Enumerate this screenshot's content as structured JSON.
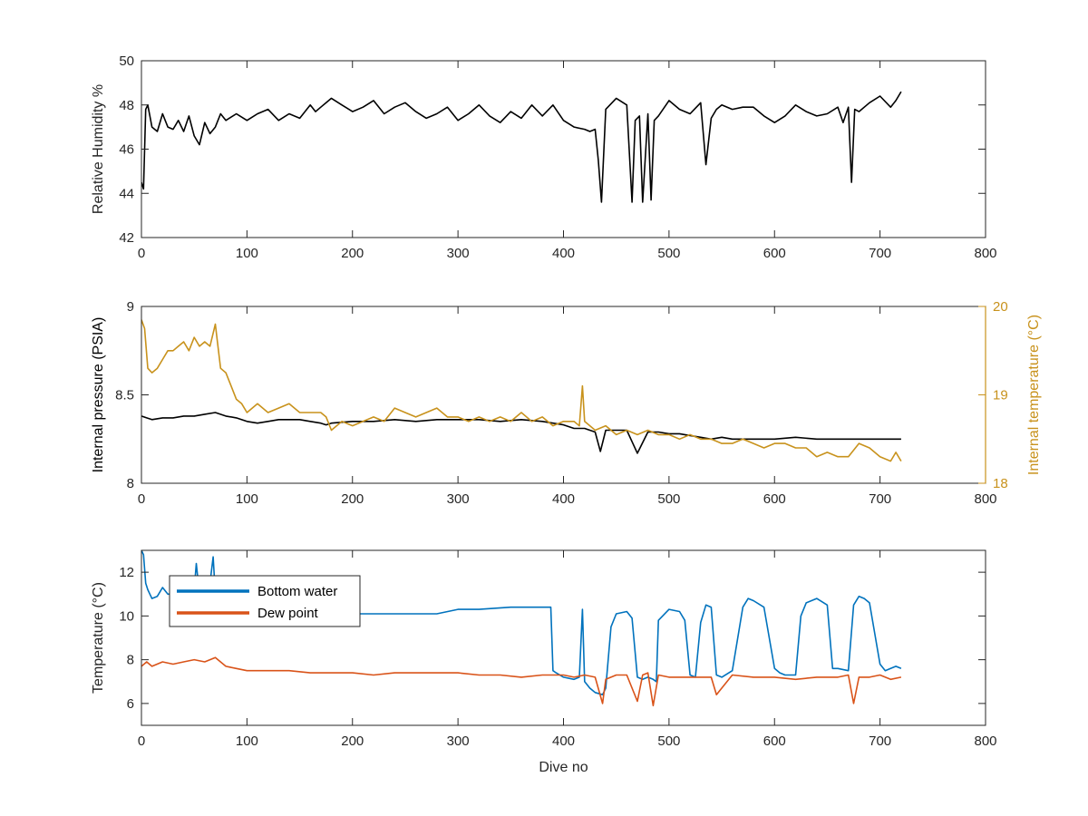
{
  "chart_data": [
    {
      "type": "line",
      "xlabel": "",
      "ylabel": "Relative Humidity %",
      "xlim": [
        0,
        800
      ],
      "ylim": [
        42,
        50
      ],
      "xticks": [
        "0",
        "100",
        "200",
        "300",
        "400",
        "500",
        "600",
        "700",
        "800"
      ],
      "yticks": [
        "42",
        "44",
        "46",
        "48",
        "50"
      ],
      "grid": false,
      "colors": {
        "line": "#000000"
      },
      "series": [
        {
          "x": [
            0,
            2,
            4,
            6,
            8,
            10,
            15,
            20,
            25,
            30,
            35,
            40,
            45,
            50,
            55,
            60,
            65,
            70,
            75,
            80,
            90,
            100,
            110,
            120,
            130,
            140,
            150,
            160,
            165,
            170,
            175,
            180,
            190,
            200,
            210,
            220,
            230,
            240,
            250,
            260,
            270,
            280,
            290,
            300,
            310,
            320,
            330,
            340,
            350,
            360,
            370,
            380,
            390,
            400,
            410,
            420,
            425,
            430,
            433,
            436,
            440,
            450,
            460,
            465,
            468,
            472,
            475,
            480,
            483,
            486,
            490,
            500,
            510,
            520,
            530,
            535,
            540,
            545,
            550,
            560,
            570,
            580,
            590,
            600,
            610,
            620,
            630,
            640,
            650,
            660,
            665,
            670,
            673,
            676,
            680,
            690,
            700,
            710,
            715,
            720
          ],
          "values": [
            44.5,
            44.2,
            47.8,
            48.0,
            47.5,
            47.0,
            46.8,
            47.6,
            47.0,
            46.9,
            47.3,
            46.8,
            47.5,
            46.6,
            46.2,
            47.2,
            46.7,
            47.0,
            47.6,
            47.3,
            47.6,
            47.3,
            47.6,
            47.8,
            47.3,
            47.6,
            47.4,
            48.0,
            47.7,
            47.9,
            48.1,
            48.3,
            48.0,
            47.7,
            47.9,
            48.2,
            47.6,
            47.9,
            48.1,
            47.7,
            47.4,
            47.6,
            47.9,
            47.3,
            47.6,
            48.0,
            47.5,
            47.2,
            47.7,
            47.4,
            48.0,
            47.5,
            48.0,
            47.3,
            47.0,
            46.9,
            46.8,
            46.9,
            45.5,
            43.6,
            47.8,
            48.3,
            48.0,
            43.6,
            47.3,
            47.5,
            43.6,
            47.6,
            43.7,
            47.3,
            47.5,
            48.2,
            47.8,
            47.6,
            48.1,
            45.3,
            47.4,
            47.8,
            48.0,
            47.8,
            47.9,
            47.9,
            47.5,
            47.2,
            47.5,
            48.0,
            47.7,
            47.5,
            47.6,
            47.9,
            47.2,
            47.9,
            44.5,
            47.8,
            47.7,
            48.1,
            48.4,
            47.9,
            48.2,
            48.6
          ]
        }
      ]
    },
    {
      "type": "line",
      "xlabel": "",
      "ylabel": "Internal pressure (PSIA)",
      "ylabel_right": "Internal temperature (°C)",
      "xlim": [
        0,
        800
      ],
      "ylim": [
        8,
        9
      ],
      "ylim_right": [
        18,
        20
      ],
      "xticks": [
        "0",
        "100",
        "200",
        "300",
        "400",
        "500",
        "600",
        "700",
        "800"
      ],
      "yticks": [
        "8",
        "8.5",
        "9"
      ],
      "yticks_right": [
        "18",
        "19",
        "20"
      ],
      "grid": false,
      "colors": {
        "pressure": "#000000",
        "temperature": "#c8921c"
      },
      "series": [
        {
          "axis": "left",
          "x": [
            0,
            5,
            10,
            20,
            30,
            40,
            50,
            60,
            70,
            80,
            90,
            100,
            110,
            120,
            130,
            140,
            150,
            160,
            170,
            175,
            180,
            200,
            220,
            240,
            260,
            280,
            300,
            320,
            340,
            360,
            380,
            400,
            410,
            420,
            430,
            435,
            440,
            450,
            460,
            470,
            480,
            490,
            500,
            510,
            520,
            530,
            540,
            550,
            560,
            580,
            600,
            620,
            640,
            660,
            680,
            700,
            710,
            720
          ],
          "values": [
            8.38,
            8.37,
            8.36,
            8.37,
            8.37,
            8.38,
            8.38,
            8.39,
            8.4,
            8.38,
            8.37,
            8.35,
            8.34,
            8.35,
            8.36,
            8.36,
            8.36,
            8.35,
            8.34,
            8.33,
            8.34,
            8.35,
            8.35,
            8.36,
            8.35,
            8.36,
            8.36,
            8.36,
            8.35,
            8.36,
            8.35,
            8.33,
            8.31,
            8.31,
            8.29,
            8.18,
            8.3,
            8.3,
            8.3,
            8.17,
            8.29,
            8.29,
            8.28,
            8.28,
            8.27,
            8.26,
            8.25,
            8.26,
            8.25,
            8.25,
            8.25,
            8.26,
            8.25,
            8.25,
            8.25,
            8.25,
            8.25,
            8.25
          ]
        },
        {
          "axis": "right",
          "x": [
            0,
            3,
            6,
            10,
            15,
            20,
            25,
            30,
            35,
            40,
            45,
            50,
            55,
            60,
            65,
            70,
            72,
            75,
            80,
            85,
            90,
            95,
            100,
            110,
            120,
            130,
            140,
            150,
            160,
            170,
            175,
            180,
            190,
            200,
            210,
            220,
            230,
            240,
            250,
            260,
            270,
            280,
            290,
            300,
            310,
            320,
            330,
            340,
            350,
            360,
            370,
            380,
            390,
            400,
            410,
            415,
            418,
            420,
            425,
            430,
            440,
            450,
            460,
            470,
            480,
            490,
            500,
            510,
            520,
            530,
            540,
            550,
            560,
            570,
            580,
            590,
            600,
            610,
            620,
            630,
            640,
            650,
            660,
            670,
            680,
            690,
            700,
            710,
            715,
            720
          ],
          "values": [
            19.85,
            19.75,
            19.3,
            19.25,
            19.3,
            19.4,
            19.5,
            19.5,
            19.55,
            19.6,
            19.5,
            19.65,
            19.55,
            19.6,
            19.55,
            19.8,
            19.6,
            19.3,
            19.25,
            19.1,
            18.95,
            18.9,
            18.8,
            18.9,
            18.8,
            18.85,
            18.9,
            18.8,
            18.8,
            18.8,
            18.75,
            18.6,
            18.7,
            18.65,
            18.7,
            18.75,
            18.7,
            18.85,
            18.8,
            18.75,
            18.8,
            18.85,
            18.75,
            18.75,
            18.7,
            18.75,
            18.7,
            18.75,
            18.7,
            18.8,
            18.7,
            18.75,
            18.65,
            18.7,
            18.7,
            18.65,
            19.1,
            18.7,
            18.65,
            18.6,
            18.65,
            18.55,
            18.6,
            18.55,
            18.6,
            18.55,
            18.55,
            18.5,
            18.55,
            18.5,
            18.5,
            18.45,
            18.45,
            18.5,
            18.45,
            18.4,
            18.45,
            18.45,
            18.4,
            18.4,
            18.3,
            18.35,
            18.3,
            18.3,
            18.45,
            18.4,
            18.3,
            18.25,
            18.35,
            18.25
          ]
        }
      ]
    },
    {
      "type": "line",
      "xlabel": "Dive no",
      "ylabel": "Temperature (°C)",
      "xlim": [
        0,
        800
      ],
      "ylim": [
        5,
        13
      ],
      "xticks": [
        "0",
        "100",
        "200",
        "300",
        "400",
        "500",
        "600",
        "700",
        "800"
      ],
      "yticks": [
        "6",
        "8",
        "10",
        "12"
      ],
      "grid": false,
      "legend_placement": "top-left",
      "series": [
        {
          "name": "Bottom water",
          "color": "#0072bd",
          "x": [
            0,
            2,
            4,
            6,
            8,
            10,
            15,
            20,
            25,
            30,
            40,
            50,
            52,
            55,
            60,
            65,
            68,
            70,
            72,
            80,
            100,
            150,
            200,
            250,
            280,
            300,
            320,
            350,
            380,
            388,
            390,
            393,
            400,
            410,
            415,
            418,
            420,
            425,
            430,
            437,
            440,
            445,
            450,
            460,
            465,
            470,
            475,
            480,
            485,
            488,
            490,
            500,
            510,
            515,
            520,
            525,
            530,
            535,
            540,
            545,
            550,
            560,
            570,
            575,
            580,
            590,
            600,
            605,
            610,
            620,
            625,
            630,
            640,
            650,
            655,
            660,
            670,
            675,
            680,
            685,
            690,
            700,
            705,
            710,
            715,
            720
          ],
          "values": [
            13,
            12.8,
            11.5,
            11.2,
            11.0,
            10.8,
            10.9,
            11.3,
            11.0,
            11.0,
            11.0,
            11.2,
            12.4,
            11.0,
            10.9,
            11.5,
            12.7,
            11.0,
            10.8,
            10.6,
            10.3,
            10.1,
            10.1,
            10.1,
            10.1,
            10.3,
            10.3,
            10.4,
            10.4,
            10.4,
            7.5,
            7.4,
            7.2,
            7.1,
            7.2,
            10.3,
            7.0,
            6.7,
            6.5,
            6.4,
            6.7,
            9.5,
            10.1,
            10.2,
            9.9,
            7.2,
            7.1,
            7.2,
            7.1,
            7.0,
            9.8,
            10.3,
            10.2,
            9.8,
            7.3,
            7.2,
            9.7,
            10.5,
            10.4,
            7.3,
            7.2,
            7.5,
            10.4,
            10.8,
            10.7,
            10.4,
            7.6,
            7.4,
            7.3,
            7.3,
            10.0,
            10.6,
            10.8,
            10.5,
            7.6,
            7.6,
            7.5,
            10.5,
            10.9,
            10.8,
            10.6,
            7.8,
            7.5,
            7.6,
            7.7,
            7.6
          ]
        },
        {
          "name": "Dew point",
          "color": "#d95319",
          "x": [
            0,
            5,
            10,
            20,
            30,
            40,
            50,
            60,
            70,
            80,
            90,
            100,
            120,
            140,
            160,
            180,
            200,
            220,
            240,
            260,
            280,
            300,
            320,
            340,
            360,
            380,
            400,
            410,
            420,
            430,
            437,
            440,
            450,
            460,
            470,
            475,
            480,
            485,
            490,
            500,
            520,
            540,
            545,
            560,
            580,
            600,
            620,
            640,
            660,
            670,
            675,
            680,
            690,
            700,
            710,
            720
          ],
          "values": [
            7.7,
            7.9,
            7.7,
            7.9,
            7.8,
            7.9,
            8.0,
            7.9,
            8.1,
            7.7,
            7.6,
            7.5,
            7.5,
            7.5,
            7.4,
            7.4,
            7.4,
            7.3,
            7.4,
            7.4,
            7.4,
            7.4,
            7.3,
            7.3,
            7.2,
            7.3,
            7.3,
            7.2,
            7.3,
            7.2,
            6.0,
            7.1,
            7.3,
            7.3,
            6.1,
            7.3,
            7.4,
            5.9,
            7.3,
            7.2,
            7.2,
            7.2,
            6.4,
            7.3,
            7.2,
            7.2,
            7.1,
            7.2,
            7.2,
            7.3,
            6.0,
            7.2,
            7.2,
            7.3,
            7.1,
            7.2
          ]
        }
      ]
    }
  ]
}
